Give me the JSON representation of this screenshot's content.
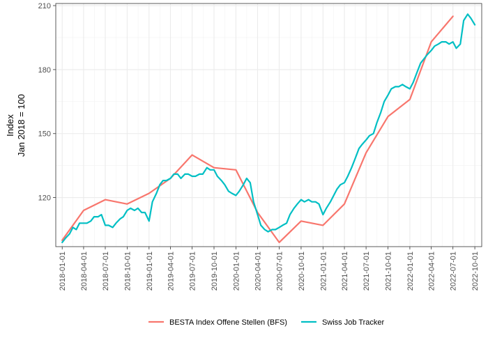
{
  "chart_data": {
    "type": "line",
    "ylabel_line1": "Index",
    "ylabel_line2": "Jan 2018 = 100",
    "ylim": [
      97,
      211
    ],
    "xlim": [
      "2017-12-05",
      "2022-10-30"
    ],
    "y_ticks": [
      120,
      150,
      180,
      210
    ],
    "x_ticks": [
      "2018-01-01",
      "2018-04-01",
      "2018-07-01",
      "2018-10-01",
      "2019-01-01",
      "2019-04-01",
      "2019-07-01",
      "2019-10-01",
      "2020-01-01",
      "2020-04-01",
      "2020-07-01",
      "2020-10-01",
      "2021-01-01",
      "2021-04-01",
      "2021-07-01",
      "2021-10-01",
      "2022-01-01",
      "2022-04-01",
      "2022-07-01",
      "2022-10-01"
    ],
    "grid": true,
    "legend_position": "bottom",
    "colors": {
      "BESTA Index Offene Stellen (BFS)": "#F8766D",
      "Swiss Job Tracker": "#00BFC4"
    },
    "series": [
      {
        "name": "BESTA Index Offene Stellen (BFS)",
        "color": "#F8766D",
        "points": [
          [
            "2018-01-01",
            100
          ],
          [
            "2018-04-01",
            114
          ],
          [
            "2018-07-01",
            119
          ],
          [
            "2018-10-01",
            117
          ],
          [
            "2019-01-01",
            122
          ],
          [
            "2019-04-01",
            129
          ],
          [
            "2019-07-01",
            140
          ],
          [
            "2019-10-01",
            134
          ],
          [
            "2020-01-01",
            133
          ],
          [
            "2020-04-01",
            113
          ],
          [
            "2020-07-01",
            99
          ],
          [
            "2020-10-01",
            109
          ],
          [
            "2021-01-01",
            107
          ],
          [
            "2021-04-01",
            117
          ],
          [
            "2021-07-01",
            141
          ],
          [
            "2021-10-01",
            158
          ],
          [
            "2022-01-01",
            166
          ],
          [
            "2022-04-01",
            193
          ],
          [
            "2022-07-01",
            205
          ]
        ]
      },
      {
        "name": "Swiss Job Tracker",
        "color": "#00BFC4",
        "points": [
          [
            "2018-01-01",
            99
          ],
          [
            "2018-01-15",
            101
          ],
          [
            "2018-02-01",
            103
          ],
          [
            "2018-02-15",
            106
          ],
          [
            "2018-03-01",
            105
          ],
          [
            "2018-03-15",
            108
          ],
          [
            "2018-04-01",
            108
          ],
          [
            "2018-04-15",
            108
          ],
          [
            "2018-05-01",
            109
          ],
          [
            "2018-05-15",
            111
          ],
          [
            "2018-06-01",
            111
          ],
          [
            "2018-06-15",
            112
          ],
          [
            "2018-07-01",
            107
          ],
          [
            "2018-07-15",
            107
          ],
          [
            "2018-08-01",
            106
          ],
          [
            "2018-08-15",
            108
          ],
          [
            "2018-09-01",
            110
          ],
          [
            "2018-09-15",
            111
          ],
          [
            "2018-10-01",
            114
          ],
          [
            "2018-10-15",
            115
          ],
          [
            "2018-11-01",
            114
          ],
          [
            "2018-11-15",
            115
          ],
          [
            "2018-12-01",
            113
          ],
          [
            "2018-12-15",
            113
          ],
          [
            "2019-01-01",
            109
          ],
          [
            "2019-01-15",
            118
          ],
          [
            "2019-02-01",
            122
          ],
          [
            "2019-02-15",
            126
          ],
          [
            "2019-03-01",
            128
          ],
          [
            "2019-03-15",
            128
          ],
          [
            "2019-04-01",
            129
          ],
          [
            "2019-04-15",
            131
          ],
          [
            "2019-05-01",
            131
          ],
          [
            "2019-05-15",
            129
          ],
          [
            "2019-06-01",
            131
          ],
          [
            "2019-06-15",
            131
          ],
          [
            "2019-07-01",
            130
          ],
          [
            "2019-07-15",
            130
          ],
          [
            "2019-08-01",
            131
          ],
          [
            "2019-08-15",
            131
          ],
          [
            "2019-09-01",
            134
          ],
          [
            "2019-09-15",
            133
          ],
          [
            "2019-10-01",
            133
          ],
          [
            "2019-10-15",
            130
          ],
          [
            "2019-11-01",
            128
          ],
          [
            "2019-11-15",
            126
          ],
          [
            "2019-12-01",
            123
          ],
          [
            "2019-12-15",
            122
          ],
          [
            "2020-01-01",
            121
          ],
          [
            "2020-01-15",
            123
          ],
          [
            "2020-02-01",
            126
          ],
          [
            "2020-02-15",
            129
          ],
          [
            "2020-03-01",
            127
          ],
          [
            "2020-03-15",
            118
          ],
          [
            "2020-04-01",
            112
          ],
          [
            "2020-04-15",
            107
          ],
          [
            "2020-05-01",
            105
          ],
          [
            "2020-05-15",
            104
          ],
          [
            "2020-06-01",
            105
          ],
          [
            "2020-06-15",
            105
          ],
          [
            "2020-07-01",
            106
          ],
          [
            "2020-07-15",
            107
          ],
          [
            "2020-08-01",
            108
          ],
          [
            "2020-08-15",
            112
          ],
          [
            "2020-09-01",
            115
          ],
          [
            "2020-09-15",
            117
          ],
          [
            "2020-10-01",
            119
          ],
          [
            "2020-10-15",
            118
          ],
          [
            "2020-11-01",
            119
          ],
          [
            "2020-11-15",
            118
          ],
          [
            "2020-12-01",
            118
          ],
          [
            "2020-12-15",
            117
          ],
          [
            "2021-01-01",
            112
          ],
          [
            "2021-01-15",
            115
          ],
          [
            "2021-02-01",
            118
          ],
          [
            "2021-02-15",
            121
          ],
          [
            "2021-03-01",
            124
          ],
          [
            "2021-03-15",
            126
          ],
          [
            "2021-04-01",
            127
          ],
          [
            "2021-04-15",
            130
          ],
          [
            "2021-05-01",
            134
          ],
          [
            "2021-05-15",
            138
          ],
          [
            "2021-06-01",
            143
          ],
          [
            "2021-06-15",
            145
          ],
          [
            "2021-07-01",
            147
          ],
          [
            "2021-07-15",
            149
          ],
          [
            "2021-08-01",
            150
          ],
          [
            "2021-08-15",
            155
          ],
          [
            "2021-09-01",
            160
          ],
          [
            "2021-09-15",
            165
          ],
          [
            "2021-10-01",
            168
          ],
          [
            "2021-10-15",
            171
          ],
          [
            "2021-11-01",
            172
          ],
          [
            "2021-11-15",
            172
          ],
          [
            "2021-12-01",
            173
          ],
          [
            "2021-12-15",
            172
          ],
          [
            "2022-01-01",
            171
          ],
          [
            "2022-01-15",
            174
          ],
          [
            "2022-02-01",
            179
          ],
          [
            "2022-02-15",
            183
          ],
          [
            "2022-03-01",
            185
          ],
          [
            "2022-03-15",
            187
          ],
          [
            "2022-04-01",
            189
          ],
          [
            "2022-04-15",
            191
          ],
          [
            "2022-05-01",
            192
          ],
          [
            "2022-05-15",
            193
          ],
          [
            "2022-06-01",
            193
          ],
          [
            "2022-06-15",
            192
          ],
          [
            "2022-07-01",
            193
          ],
          [
            "2022-07-15",
            190
          ],
          [
            "2022-08-01",
            192
          ],
          [
            "2022-08-15",
            203
          ],
          [
            "2022-09-01",
            206
          ],
          [
            "2022-09-15",
            204
          ],
          [
            "2022-10-01",
            201
          ]
        ]
      }
    ]
  }
}
